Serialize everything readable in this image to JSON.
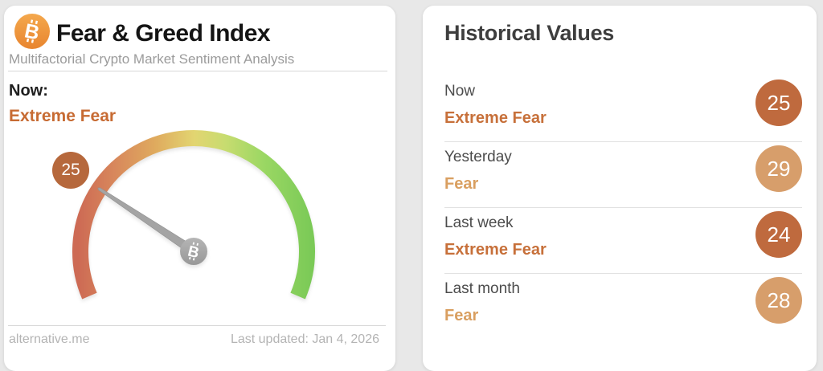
{
  "left_card": {
    "title": "Fear & Greed Index",
    "subtitle": "Multifactorial Crypto Market Sentiment Analysis",
    "now_label": "Now:",
    "now_value": "Extreme Fear",
    "footer_site": "alternative.me",
    "footer_updated": "Last updated: Jan 4, 2026"
  },
  "chart_data": {
    "type": "gauge",
    "title": "Fear & Greed Index",
    "value": 25,
    "min": 0,
    "max": 100,
    "classification": "Extreme Fear",
    "angle_start": 203,
    "angle_sweep": 226,
    "scale_colors": [
      "#cd6a54",
      "#d8885c",
      "#dfaa5e",
      "#e2d571",
      "#c8dc70",
      "#9ad763",
      "#7bca57"
    ],
    "needle_color": "#a4a4a4",
    "badge_color": "#b6683c"
  },
  "historical": {
    "title": "Historical Values",
    "rows": [
      {
        "label": "Now",
        "classification": "Extreme Fear",
        "value": 25,
        "tone": "dark"
      },
      {
        "label": "Yesterday",
        "classification": "Fear",
        "value": 29,
        "tone": "light"
      },
      {
        "label": "Last week",
        "classification": "Extreme Fear",
        "value": 24,
        "tone": "dark"
      },
      {
        "label": "Last month",
        "classification": "Fear",
        "value": 28,
        "tone": "light"
      }
    ]
  },
  "colors": {
    "accent_dark_orange": "#bf6a3e",
    "accent_light_orange": "#d79e6b",
    "page_background": "#e8e8e8"
  }
}
